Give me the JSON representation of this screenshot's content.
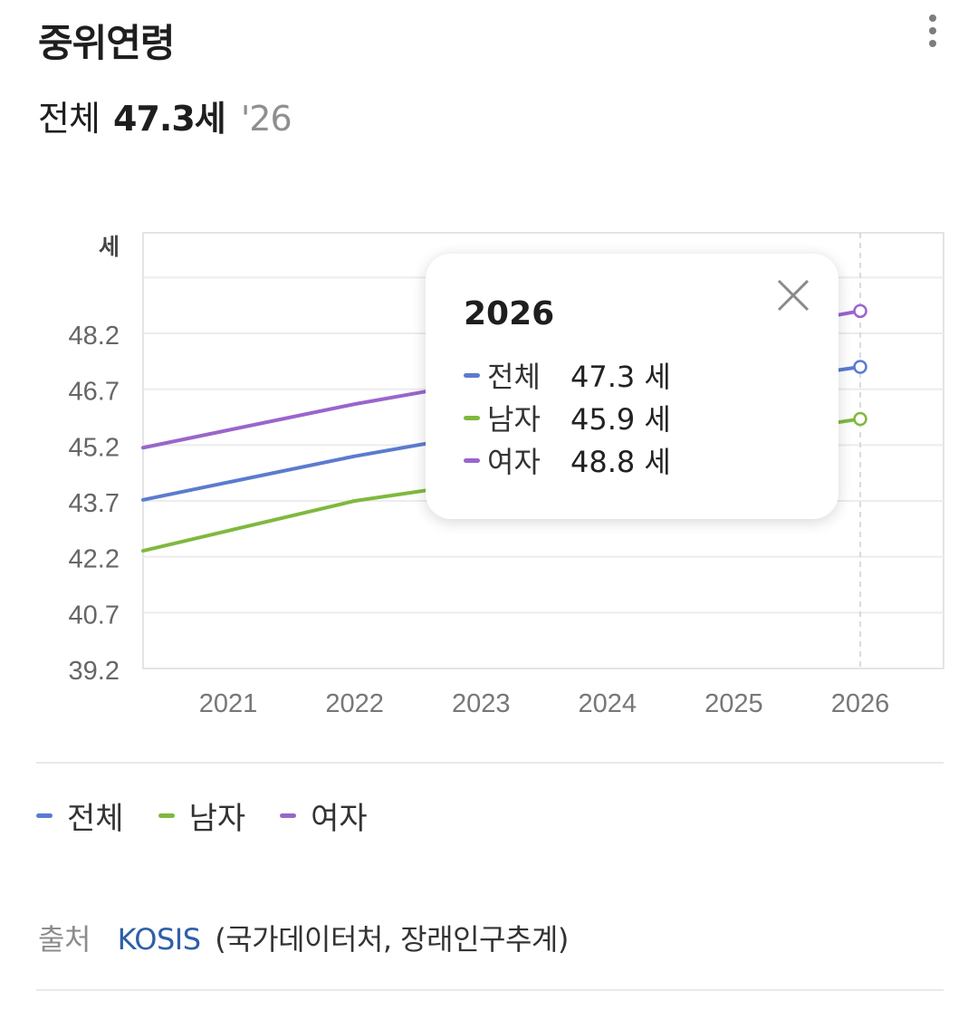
{
  "header": {
    "title": "중위연령",
    "summary_label": "전체",
    "summary_value": "47.3세",
    "summary_year": "'26",
    "more_icon": "more-vertical-icon"
  },
  "chart_data": {
    "type": "line",
    "ylabel": "세",
    "x": [
      "2021",
      "2022",
      "2023",
      "2024",
      "2025",
      "2026"
    ],
    "yticks": [
      39.2,
      40.7,
      42.2,
      43.7,
      45.2,
      46.7,
      48.2
    ],
    "ylim": [
      39.2,
      50.9
    ],
    "grid": true,
    "legend_position": "bottom",
    "series": [
      {
        "name": "전체",
        "color": "#5b7bd0",
        "values": [
          44.2,
          44.9,
          45.5,
          46.2,
          46.8,
          47.3
        ]
      },
      {
        "name": "남자",
        "color": "#7fb93e",
        "values": [
          42.9,
          43.7,
          44.2,
          44.8,
          45.4,
          45.9
        ]
      },
      {
        "name": "여자",
        "color": "#9a65cc",
        "values": [
          45.6,
          46.3,
          46.9,
          47.5,
          48.2,
          48.8
        ]
      }
    ]
  },
  "tooltip": {
    "year": "2026",
    "rows": [
      {
        "name": "전체",
        "value": "47.3 세",
        "color": "#5b7bd0"
      },
      {
        "name": "남자",
        "value": "45.9 세",
        "color": "#7fb93e"
      },
      {
        "name": "여자",
        "value": "48.8 세",
        "color": "#9a65cc"
      }
    ]
  },
  "legend": {
    "items": [
      {
        "label": "전체",
        "color": "#5b7bd0"
      },
      {
        "label": "남자",
        "color": "#7fb93e"
      },
      {
        "label": "여자",
        "color": "#9a65cc"
      }
    ]
  },
  "source": {
    "label": "출처",
    "link": "KOSIS",
    "detail": "(국가데이터처, 장래인구추계)"
  }
}
